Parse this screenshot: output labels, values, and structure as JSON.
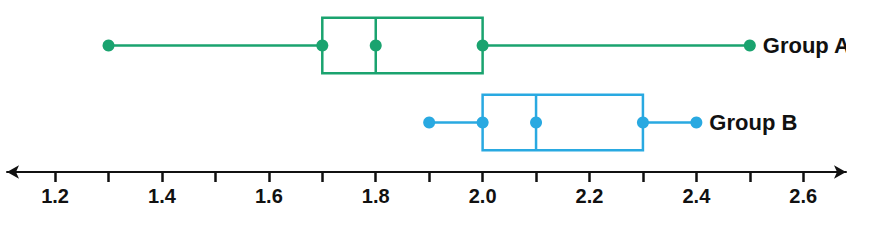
{
  "chart_data": {
    "type": "boxplot",
    "series": [
      {
        "name": "Group A",
        "color": "#1aa36f",
        "values": {
          "min": 1.3,
          "q1": 1.7,
          "median": 1.8,
          "q3": 2.0,
          "max": 2.5
        }
      },
      {
        "name": "Group B",
        "color": "#29a9e1",
        "values": {
          "min": 1.9,
          "q1": 2.0,
          "median": 2.1,
          "q3": 2.3,
          "max": 2.4
        }
      }
    ],
    "xlim": [
      1.11,
      2.68
    ],
    "xticks": [
      1.2,
      1.4,
      1.6,
      1.8,
      {
        "value": 2,
        "label": "2.0"
      },
      2.2,
      2.4,
      2.6
    ],
    "marker": "circle",
    "tick_labels": "x"
  }
}
